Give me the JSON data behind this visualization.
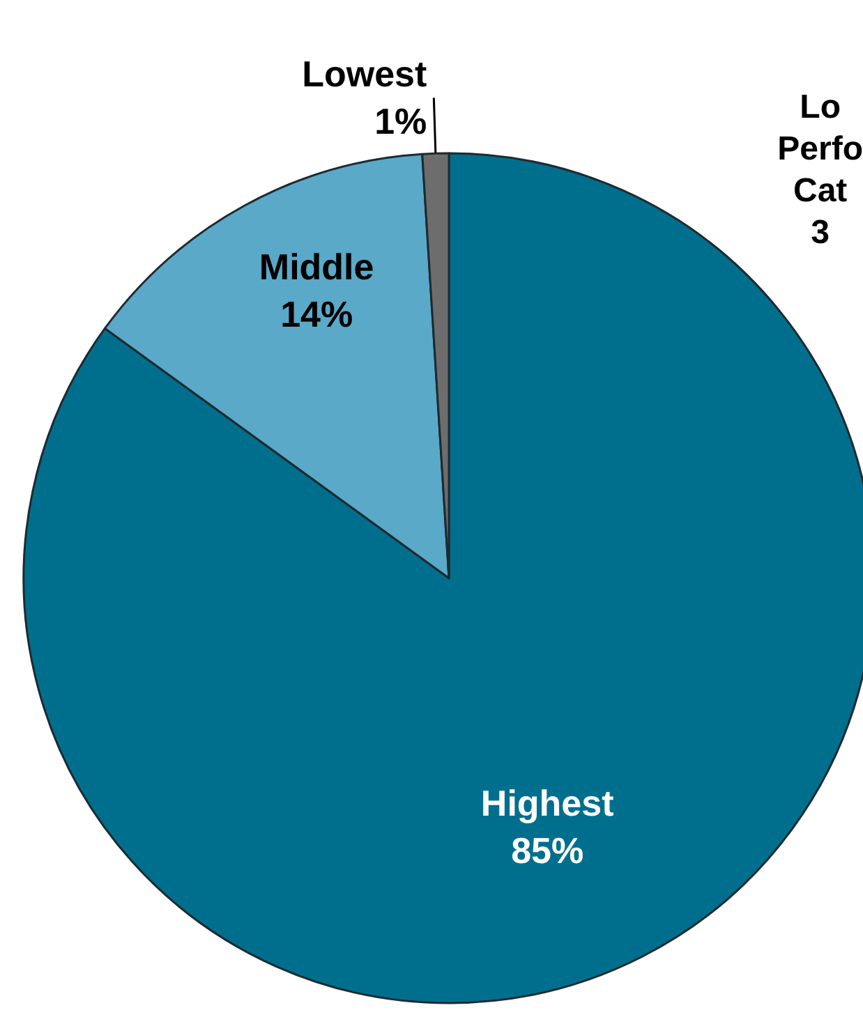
{
  "chart_data": {
    "type": "pie",
    "categories": [
      "Highest",
      "Middle",
      "Lowest"
    ],
    "values": [
      85,
      14,
      1
    ],
    "value_labels": [
      "85%",
      "14%",
      "1%"
    ],
    "colors": [
      "#006f8e",
      "#5aa9c8",
      "#6d6d6d"
    ],
    "legend": false,
    "annotations": [
      "Lo\nPerfo\nCat\n3"
    ]
  }
}
